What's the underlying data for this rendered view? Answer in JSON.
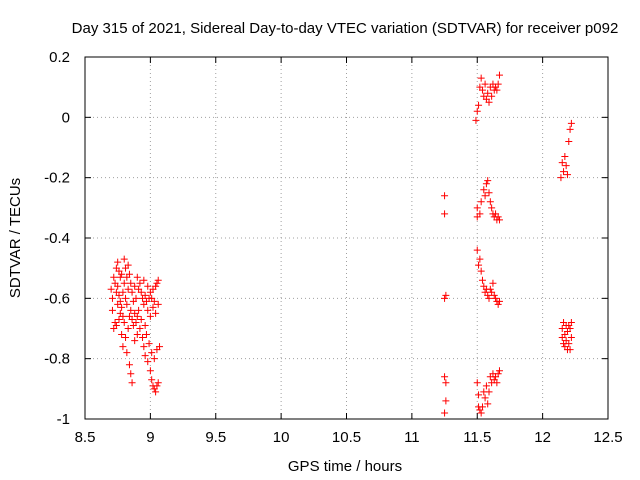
{
  "chart_data": {
    "type": "scatter",
    "title": "Day 315 of 2021, Sidereal Day-to-day VTEC variation (SDTVAR) for receiver p092",
    "xlabel": "GPS time / hours",
    "ylabel": "SDTVAR / TECUs",
    "xlim": [
      8.5,
      12.5
    ],
    "ylim": [
      -1.0,
      0.2
    ],
    "xticks": [
      8.5,
      9,
      9.5,
      10,
      10.5,
      11,
      11.5,
      12,
      12.5
    ],
    "xtick_labels": [
      "8.5",
      "9",
      "9.5",
      "10",
      "10.5",
      "11",
      "11.5",
      "12",
      "12.5"
    ],
    "yticks": [
      -1.0,
      -0.8,
      -0.6,
      -0.4,
      -0.2,
      0.0,
      0.2
    ],
    "ytick_labels": [
      "-1",
      "-0.8",
      "-0.6",
      "-0.4",
      "-0.2",
      "0",
      "0.2"
    ],
    "grid": true,
    "marker": "+",
    "color": "#ff0000",
    "series": [
      {
        "name": "SDTVAR",
        "points": [
          [
            8.7,
            -0.57
          ],
          [
            8.71,
            -0.6
          ],
          [
            8.71,
            -0.64
          ],
          [
            8.72,
            -0.7
          ],
          [
            8.72,
            -0.53
          ],
          [
            8.73,
            -0.55
          ],
          [
            8.73,
            -0.68
          ],
          [
            8.74,
            -0.5
          ],
          [
            8.74,
            -0.58
          ],
          [
            8.74,
            -0.69
          ],
          [
            8.75,
            -0.48
          ],
          [
            8.75,
            -0.56
          ],
          [
            8.75,
            -0.62
          ],
          [
            8.76,
            -0.51
          ],
          [
            8.76,
            -0.59
          ],
          [
            8.76,
            -0.67
          ],
          [
            8.77,
            -0.53
          ],
          [
            8.77,
            -0.61
          ],
          [
            8.77,
            -0.65
          ],
          [
            8.78,
            -0.52
          ],
          [
            8.78,
            -0.63
          ],
          [
            8.78,
            -0.72
          ],
          [
            8.79,
            -0.58
          ],
          [
            8.79,
            -0.66
          ],
          [
            8.79,
            -0.76
          ],
          [
            8.8,
            -0.47
          ],
          [
            8.8,
            -0.55
          ],
          [
            8.8,
            -0.68
          ],
          [
            8.81,
            -0.5
          ],
          [
            8.81,
            -0.6
          ],
          [
            8.81,
            -0.73
          ],
          [
            8.82,
            -0.53
          ],
          [
            8.82,
            -0.62
          ],
          [
            8.82,
            -0.78
          ],
          [
            8.83,
            -0.49
          ],
          [
            8.83,
            -0.57
          ],
          [
            8.83,
            -0.7
          ],
          [
            8.84,
            -0.52
          ],
          [
            8.84,
            -0.66
          ],
          [
            8.84,
            -0.82
          ],
          [
            8.85,
            -0.55
          ],
          [
            8.85,
            -0.64
          ],
          [
            8.85,
            -0.85
          ],
          [
            8.86,
            -0.58
          ],
          [
            8.86,
            -0.67
          ],
          [
            8.86,
            -0.88
          ],
          [
            8.87,
            -0.61
          ],
          [
            8.87,
            -0.69
          ],
          [
            8.88,
            -0.56
          ],
          [
            8.88,
            -0.65
          ],
          [
            8.88,
            -0.74
          ],
          [
            8.89,
            -0.6
          ],
          [
            8.89,
            -0.68
          ],
          [
            8.9,
            -0.53
          ],
          [
            8.9,
            -0.66
          ],
          [
            8.9,
            -0.72
          ],
          [
            8.91,
            -0.57
          ],
          [
            8.91,
            -0.64
          ],
          [
            8.92,
            -0.55
          ],
          [
            8.92,
            -0.7
          ],
          [
            8.93,
            -0.58
          ],
          [
            8.93,
            -0.67
          ],
          [
            8.94,
            -0.6
          ],
          [
            8.94,
            -0.73
          ],
          [
            8.95,
            -0.54
          ],
          [
            8.95,
            -0.62
          ],
          [
            8.95,
            -0.76
          ],
          [
            8.96,
            -0.59
          ],
          [
            8.96,
            -0.69
          ],
          [
            8.96,
            -0.79
          ],
          [
            8.97,
            -0.61
          ],
          [
            8.97,
            -0.72
          ],
          [
            8.98,
            -0.56
          ],
          [
            8.98,
            -0.64
          ],
          [
            8.98,
            -0.81
          ],
          [
            8.99,
            -0.6
          ],
          [
            8.99,
            -0.75
          ],
          [
            9.0,
            -0.58
          ],
          [
            9.0,
            -0.66
          ],
          [
            9.0,
            -0.84
          ],
          [
            9.01,
            -0.6
          ],
          [
            9.01,
            -0.78
          ],
          [
            9.01,
            -0.87
          ],
          [
            9.02,
            -0.57
          ],
          [
            9.02,
            -0.63
          ],
          [
            9.02,
            -0.89
          ],
          [
            9.03,
            -0.61
          ],
          [
            9.03,
            -0.8
          ],
          [
            9.03,
            -0.9
          ],
          [
            9.04,
            -0.56
          ],
          [
            9.04,
            -0.65
          ],
          [
            9.04,
            -0.91
          ],
          [
            9.05,
            -0.55
          ],
          [
            9.05,
            -0.77
          ],
          [
            9.05,
            -0.89
          ],
          [
            9.06,
            -0.54
          ],
          [
            9.06,
            -0.62
          ],
          [
            9.06,
            -0.88
          ],
          [
            9.07,
            -0.76
          ],
          [
            11.25,
            -0.26
          ],
          [
            11.25,
            -0.32
          ],
          [
            11.25,
            -0.6
          ],
          [
            11.25,
            -0.86
          ],
          [
            11.26,
            -0.59
          ],
          [
            11.26,
            -0.88
          ],
          [
            11.26,
            -0.94
          ],
          [
            11.25,
            -0.98
          ],
          [
            11.49,
            -0.01
          ],
          [
            11.5,
            0.02
          ],
          [
            11.5,
            -0.3
          ],
          [
            11.5,
            -0.33
          ],
          [
            11.5,
            -0.44
          ],
          [
            11.5,
            -0.88
          ],
          [
            11.51,
            0.04
          ],
          [
            11.51,
            -0.49
          ],
          [
            11.51,
            -0.92
          ],
          [
            11.51,
            -0.96
          ],
          [
            11.52,
            0.1
          ],
          [
            11.52,
            -0.32
          ],
          [
            11.52,
            -0.47
          ],
          [
            11.52,
            -0.97
          ],
          [
            11.53,
            0.13
          ],
          [
            11.53,
            -0.28
          ],
          [
            11.53,
            -0.51
          ],
          [
            11.53,
            -0.98
          ],
          [
            11.54,
            0.09
          ],
          [
            11.54,
            -0.54
          ],
          [
            11.54,
            -0.96
          ],
          [
            11.55,
            0.07
          ],
          [
            11.55,
            -0.24
          ],
          [
            11.55,
            -0.56
          ],
          [
            11.55,
            -0.91
          ],
          [
            11.56,
            0.11
          ],
          [
            11.56,
            -0.26
          ],
          [
            11.56,
            -0.58
          ],
          [
            11.56,
            -0.93
          ],
          [
            11.57,
            0.06
          ],
          [
            11.57,
            -0.22
          ],
          [
            11.57,
            -0.57
          ],
          [
            11.57,
            -0.89
          ],
          [
            11.58,
            0.08
          ],
          [
            11.58,
            -0.21
          ],
          [
            11.58,
            -0.59
          ],
          [
            11.58,
            -0.95
          ],
          [
            11.59,
            0.05
          ],
          [
            11.59,
            -0.25
          ],
          [
            11.59,
            -0.6
          ],
          [
            11.59,
            -0.91
          ],
          [
            11.6,
            0.1
          ],
          [
            11.6,
            -0.28
          ],
          [
            11.6,
            -0.57
          ],
          [
            11.6,
            -0.86
          ],
          [
            11.61,
            0.07
          ],
          [
            11.61,
            -0.3
          ],
          [
            11.61,
            -0.58
          ],
          [
            11.61,
            -0.88
          ],
          [
            11.62,
            0.11
          ],
          [
            11.62,
            -0.32
          ],
          [
            11.62,
            -0.55
          ],
          [
            11.62,
            -0.85
          ],
          [
            11.63,
            0.09
          ],
          [
            11.63,
            -0.33
          ],
          [
            11.63,
            -0.59
          ],
          [
            11.63,
            -0.87
          ],
          [
            11.64,
            0.1
          ],
          [
            11.64,
            -0.32
          ],
          [
            11.64,
            -0.6
          ],
          [
            11.64,
            -0.86
          ],
          [
            11.65,
            0.09
          ],
          [
            11.65,
            -0.34
          ],
          [
            11.65,
            -0.61
          ],
          [
            11.65,
            -0.88
          ],
          [
            11.66,
            0.11
          ],
          [
            11.66,
            -0.33
          ],
          [
            11.66,
            -0.62
          ],
          [
            11.66,
            -0.85
          ],
          [
            11.67,
            0.14
          ],
          [
            11.67,
            -0.34
          ],
          [
            11.67,
            -0.61
          ],
          [
            11.67,
            -0.84
          ],
          [
            12.14,
            -0.2
          ],
          [
            12.15,
            -0.15
          ],
          [
            12.15,
            -0.7
          ],
          [
            12.15,
            -0.73
          ],
          [
            12.16,
            -0.18
          ],
          [
            12.16,
            -0.68
          ],
          [
            12.16,
            -0.75
          ],
          [
            12.17,
            -0.13
          ],
          [
            12.17,
            -0.72
          ],
          [
            12.17,
            -0.76
          ],
          [
            12.18,
            -0.16
          ],
          [
            12.18,
            -0.69
          ],
          [
            12.18,
            -0.74
          ],
          [
            12.19,
            -0.19
          ],
          [
            12.19,
            -0.71
          ],
          [
            12.19,
            -0.77
          ],
          [
            12.2,
            -0.08
          ],
          [
            12.2,
            -0.69
          ],
          [
            12.2,
            -0.75
          ],
          [
            12.21,
            -0.04
          ],
          [
            12.21,
            -0.7
          ],
          [
            12.21,
            -0.77
          ],
          [
            12.22,
            -0.02
          ],
          [
            12.22,
            -0.68
          ],
          [
            12.22,
            -0.73
          ]
        ]
      }
    ]
  }
}
